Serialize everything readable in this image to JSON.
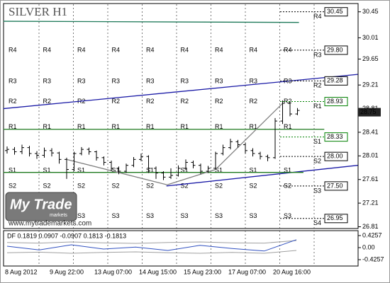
{
  "chart_data": {
    "type": "ohlc",
    "title": "SILVER H1",
    "brand": "My Trade",
    "brand_sub": "markets",
    "url": "www.mytrademarkets.com",
    "categories": [
      "8 Aug 2012",
      null,
      null,
      null,
      null,
      null,
      "9 Aug 22:00",
      null,
      null,
      null,
      null,
      null,
      "13 Aug 07:00",
      null,
      null,
      null,
      null,
      null,
      "14 Aug 15:00",
      null,
      null,
      null,
      null,
      null,
      "15 Aug 23:00",
      null,
      null,
      null,
      null,
      null,
      "17 Aug 07:00",
      null,
      null,
      null,
      null,
      null,
      "20 Aug 16:00",
      null,
      null,
      null
    ],
    "open": [
      28.1,
      28.12,
      28.08,
      28.15,
      28.05,
      28.02,
      28.1,
      28.06,
      27.95,
      27.78,
      28.05,
      28.12,
      28.08,
      27.98,
      27.9,
      27.8,
      27.75,
      27.85,
      27.95,
      28.0,
      27.8,
      27.72,
      27.65,
      27.68,
      27.8,
      27.9,
      27.85,
      27.75,
      27.8,
      28.05,
      28.15,
      28.25,
      28.2,
      28.1,
      28.05,
      28.0,
      27.98,
      28.6,
      28.9,
      28.72
    ],
    "high": [
      28.17,
      28.16,
      28.2,
      28.18,
      28.09,
      28.15,
      28.14,
      28.08,
      27.98,
      28.08,
      28.16,
      28.15,
      28.1,
      28.0,
      27.93,
      27.83,
      27.88,
      27.99,
      28.05,
      28.02,
      27.83,
      27.75,
      27.8,
      27.85,
      27.95,
      27.93,
      27.88,
      27.84,
      28.08,
      28.2,
      28.3,
      28.28,
      28.23,
      28.14,
      28.08,
      28.03,
      28.65,
      28.95,
      28.92,
      28.82
    ],
    "low": [
      28.05,
      28.03,
      28.04,
      28.0,
      27.96,
      27.98,
      28.0,
      27.88,
      27.62,
      27.75,
      28.02,
      28.03,
      27.93,
      27.85,
      27.75,
      27.7,
      27.72,
      27.82,
      27.92,
      27.72,
      27.62,
      27.6,
      27.62,
      27.66,
      27.77,
      27.8,
      27.7,
      27.72,
      27.78,
      28.02,
      28.12,
      28.15,
      28.05,
      28.0,
      27.95,
      27.92,
      27.96,
      28.55,
      28.68,
      28.7
    ],
    "close": [
      28.12,
      28.08,
      28.15,
      28.05,
      28.02,
      28.1,
      28.06,
      27.95,
      27.78,
      28.05,
      28.12,
      28.08,
      27.98,
      27.9,
      27.8,
      27.75,
      27.85,
      27.95,
      28.0,
      27.8,
      27.72,
      27.65,
      27.68,
      27.8,
      27.9,
      27.85,
      27.75,
      27.8,
      28.05,
      28.15,
      28.25,
      28.2,
      28.1,
      28.05,
      28.0,
      27.98,
      28.6,
      28.9,
      28.72,
      28.78
    ],
    "color": "#000000",
    "ylim": [
      26.78,
      30.59
    ],
    "yticks": [
      30.45,
      30.01,
      29.65,
      29.21,
      28.81,
      28.41,
      28.01,
      27.61,
      27.21,
      26.81
    ],
    "current_price": 28.75,
    "levels": {
      "names": [
        "R4",
        "R3",
        "R2",
        "R1",
        "S1",
        "S2",
        "S3",
        "S4"
      ],
      "values": [
        30.45,
        29.8,
        29.28,
        28.93,
        28.33,
        28,
        27.5,
        26.95
      ],
      "value_labels": [
        "30.45",
        "29.80",
        "29.28",
        "28.93",
        "28.33",
        "28.00",
        "27.50",
        "26.95"
      ],
      "colors": [
        "#000000",
        "#000000",
        "#000000",
        "#008000",
        "#008000",
        "#000000",
        "#000000",
        "#000000"
      ]
    },
    "history_levels": {
      "names": [
        "R4",
        "R3",
        "R2",
        "R1",
        "S1",
        "S2",
        "S3"
      ],
      "values": [
        29.74,
        29.21,
        28.87,
        28.44,
        27.7,
        27.44,
        26.93
      ]
    },
    "trendlines": [
      {
        "color": "#1a1aa6",
        "x": [
          -0.5,
          47.1
        ],
        "values": [
          28.81,
          29.39
        ]
      },
      {
        "color": "#1a1aa6",
        "x": [
          21.4,
          47.1
        ],
        "values": [
          27.5,
          27.85
        ]
      },
      {
        "color": "#1f7a5a",
        "x": [
          -0.5,
          39.2
        ],
        "values": [
          30.29,
          30.27
        ]
      },
      {
        "color": "#1f7a1f",
        "x": [
          -0.5,
          42.6
        ],
        "values": [
          28.46,
          28.46
        ]
      },
      {
        "color": "#1f7a1f",
        "x": [
          -0.5,
          39.8
        ],
        "values": [
          27.73,
          27.73
        ]
      },
      {
        "color": "#808080",
        "x": [
          8,
          21.5,
          28,
          37
        ],
        "values": [
          27.95,
          27.52,
          27.78,
          28.9
        ]
      }
    ],
    "indicator": {
      "label": "DF 0.1819 0.0907 -0.0907 0.1813 -0.1813",
      "ylim": [
        -0.65,
        0.6
      ],
      "yticks": [
        {
          "value": 0.4257,
          "label": "0.4257"
        },
        {
          "value": 0,
          "label": "0.00"
        },
        {
          "value": -0.4257,
          "label": "-0.4257"
        }
      ],
      "series": [
        {
          "color": "#a0a0a0",
          "values": [
            0.18,
            0.16,
            0.2,
            0.17,
            0.15,
            0.18,
            0.2,
            0.17,
            0.16,
            0.25
          ]
        },
        {
          "color": "#a0a0a0",
          "values": [
            -0.18,
            -0.16,
            -0.2,
            -0.17,
            -0.15,
            -0.18,
            -0.2,
            -0.17,
            -0.2,
            -0.1
          ]
        },
        {
          "color": "#3050c0",
          "values": [
            0.05,
            -0.08,
            0.1,
            -0.05,
            0.02,
            -0.1,
            0.08,
            -0.03,
            -0.12,
            0.28
          ]
        }
      ]
    }
  }
}
